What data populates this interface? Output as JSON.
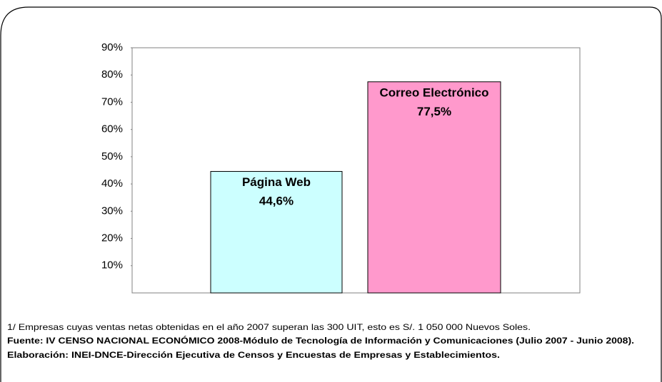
{
  "chart_data": {
    "type": "bar",
    "categories": [
      "Página Web",
      "Correo Electrónico"
    ],
    "values": [
      44.6,
      77.5
    ],
    "value_labels": [
      "44,6%",
      "77,5%"
    ],
    "colors": [
      "#ccffff",
      "#ff99cc"
    ],
    "ylim": [
      0,
      90
    ],
    "yticks": [
      {
        "value": 10,
        "label": "10%"
      },
      {
        "value": 20,
        "label": "20%"
      },
      {
        "value": 30,
        "label": "30%"
      },
      {
        "value": 40,
        "label": "40%"
      },
      {
        "value": 50,
        "label": "50%"
      },
      {
        "value": 60,
        "label": "60%"
      },
      {
        "value": 70,
        "label": "70%"
      },
      {
        "value": 80,
        "label": "80%"
      },
      {
        "value": 90,
        "label": "90%"
      }
    ],
    "notes": [
      "1/ Empresas cuyas ventas netas obtenidas en el año 2007 superan las 300 UIT, esto es S/. 1 050 000 Nuevos Soles.",
      "Fuente: IV CENSO NACIONAL ECONÓMICO 2008-Módulo de Tecnología de Información y Comunicaciones (Julio 2007 - Junio 2008).",
      "Elaboración: INEI-DNCE-Dirección Ejecutiva de Censos y Encuestas de Empresas y Establecimientos."
    ]
  }
}
